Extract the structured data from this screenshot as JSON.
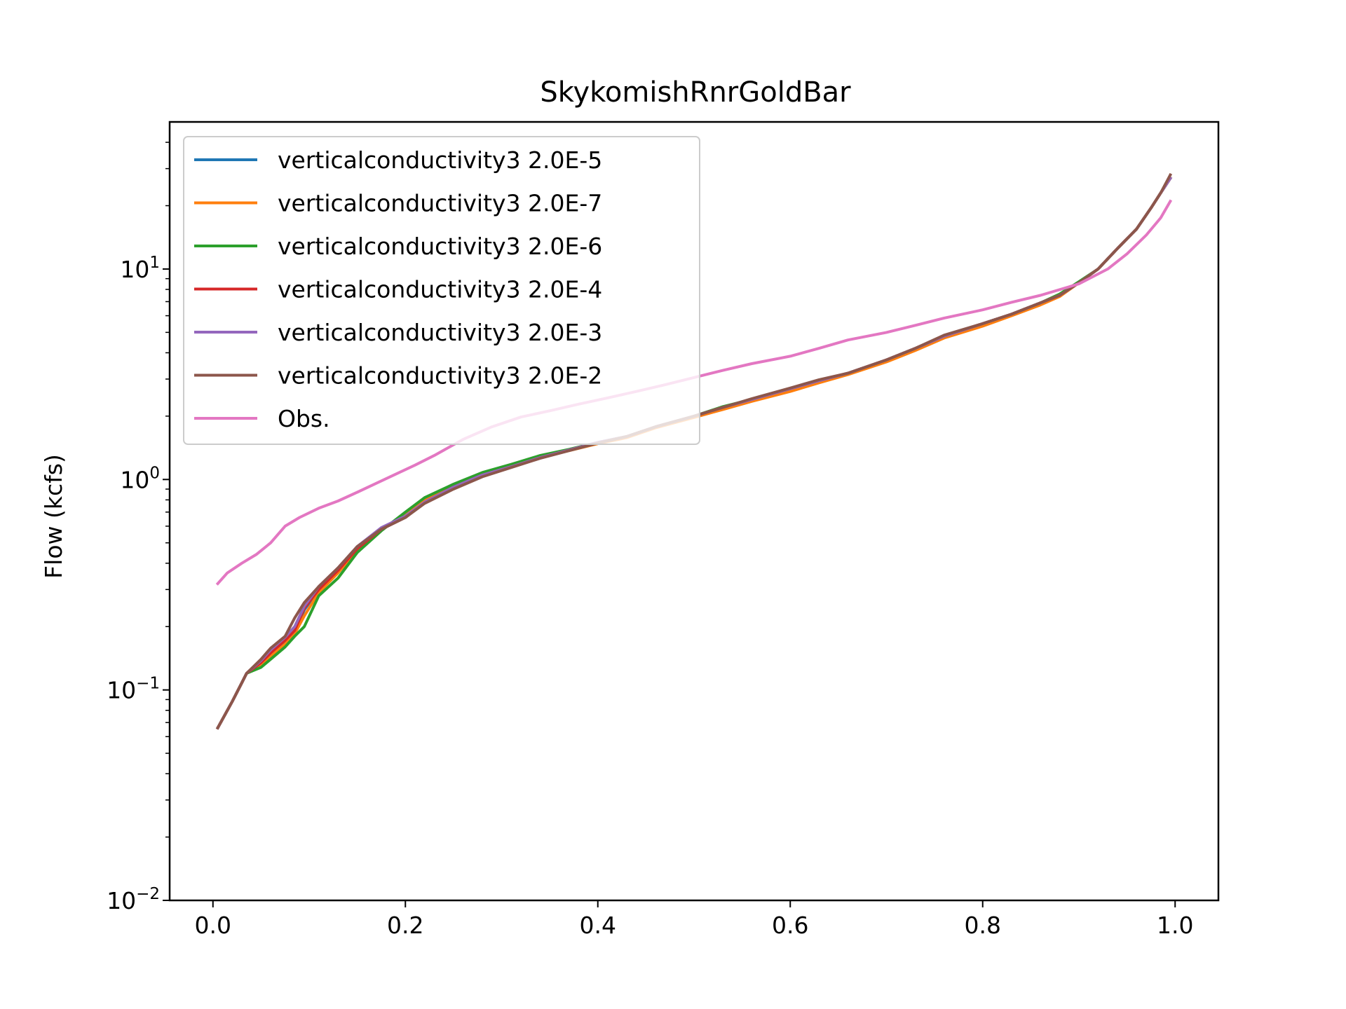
{
  "chart_data": {
    "type": "line",
    "title": "SkykomishRnrGoldBar",
    "xlabel": "",
    "ylabel": "Flow (kcfs)",
    "xlim": [
      -0.045,
      1.045
    ],
    "ylim": [
      0.01,
      50
    ],
    "yscale": "log",
    "grid": false,
    "legend_position": "upper left",
    "x_ticks": [
      {
        "value": 0.0,
        "label": "0.0"
      },
      {
        "value": 0.2,
        "label": "0.2"
      },
      {
        "value": 0.4,
        "label": "0.4"
      },
      {
        "value": 0.6,
        "label": "0.6"
      },
      {
        "value": 0.8,
        "label": "0.8"
      },
      {
        "value": 1.0,
        "label": "1.0"
      }
    ],
    "y_ticks": [
      {
        "value": 0.01,
        "base": "10",
        "exp": "−2"
      },
      {
        "value": 0.1,
        "base": "10",
        "exp": "−1"
      },
      {
        "value": 1,
        "base": "10",
        "exp": "0"
      },
      {
        "value": 10,
        "base": "10",
        "exp": "1"
      }
    ],
    "series": [
      {
        "name": "verticalconductivity3 2.0E-5",
        "color": "#1f77b4",
        "x": [
          0.005,
          0.02,
          0.03,
          0.035,
          0.05,
          0.06,
          0.075,
          0.085,
          0.095,
          0.11,
          0.13,
          0.15,
          0.175,
          0.2,
          0.22,
          0.25,
          0.28,
          0.31,
          0.34,
          0.37,
          0.4,
          0.43,
          0.46,
          0.5,
          0.53,
          0.56,
          0.6,
          0.63,
          0.66,
          0.7,
          0.73,
          0.76,
          0.8,
          0.83,
          0.86,
          0.88,
          0.9,
          0.92,
          0.94,
          0.96,
          0.975,
          0.985,
          0.995
        ],
        "y": [
          0.066,
          0.088,
          0.108,
          0.12,
          0.132,
          0.148,
          0.17,
          0.19,
          0.24,
          0.3,
          0.37,
          0.47,
          0.58,
          0.66,
          0.78,
          0.92,
          1.05,
          1.15,
          1.27,
          1.38,
          1.5,
          1.6,
          1.78,
          2.0,
          2.2,
          2.4,
          2.7,
          2.95,
          3.2,
          3.7,
          4.2,
          4.8,
          5.5,
          6.1,
          6.9,
          7.5,
          8.6,
          10.0,
          12.5,
          15.5,
          19.5,
          23.0,
          27.0
        ]
      },
      {
        "name": "verticalconductivity3 2.0E-7",
        "color": "#ff7f0e",
        "x": [
          0.005,
          0.02,
          0.03,
          0.035,
          0.05,
          0.06,
          0.075,
          0.085,
          0.095,
          0.11,
          0.13,
          0.15,
          0.175,
          0.2,
          0.22,
          0.25,
          0.28,
          0.31,
          0.34,
          0.37,
          0.4,
          0.43,
          0.46,
          0.5,
          0.53,
          0.56,
          0.6,
          0.63,
          0.66,
          0.7,
          0.73,
          0.76,
          0.8,
          0.83,
          0.86,
          0.88,
          0.9,
          0.92,
          0.94,
          0.96,
          0.975,
          0.985,
          0.995
        ],
        "y": [
          0.066,
          0.088,
          0.108,
          0.12,
          0.131,
          0.145,
          0.165,
          0.185,
          0.225,
          0.29,
          0.36,
          0.46,
          0.58,
          0.68,
          0.8,
          0.93,
          1.06,
          1.16,
          1.28,
          1.37,
          1.48,
          1.58,
          1.76,
          1.97,
          2.15,
          2.35,
          2.62,
          2.88,
          3.15,
          3.62,
          4.1,
          4.7,
          5.35,
          6.0,
          6.75,
          7.4,
          8.6,
          10.0,
          12.5,
          15.5,
          19.5,
          23.0,
          27.0
        ]
      },
      {
        "name": "verticalconductivity3 2.0E-6",
        "color": "#2ca02c",
        "x": [
          0.005,
          0.02,
          0.03,
          0.035,
          0.05,
          0.06,
          0.075,
          0.085,
          0.095,
          0.11,
          0.13,
          0.15,
          0.175,
          0.2,
          0.22,
          0.25,
          0.28,
          0.31,
          0.34,
          0.37,
          0.4,
          0.43,
          0.46,
          0.5,
          0.53,
          0.56,
          0.6,
          0.63,
          0.66,
          0.7,
          0.73,
          0.76,
          0.8,
          0.83,
          0.86,
          0.88,
          0.9,
          0.92,
          0.94,
          0.96,
          0.975,
          0.985,
          0.995
        ],
        "y": [
          0.066,
          0.088,
          0.108,
          0.12,
          0.128,
          0.14,
          0.16,
          0.18,
          0.2,
          0.28,
          0.34,
          0.45,
          0.57,
          0.7,
          0.82,
          0.95,
          1.08,
          1.18,
          1.3,
          1.39,
          1.5,
          1.6,
          1.78,
          2.0,
          2.22,
          2.4,
          2.7,
          2.95,
          3.2,
          3.7,
          4.2,
          4.8,
          5.5,
          6.1,
          6.9,
          7.6,
          8.7,
          10.0,
          12.5,
          15.5,
          19.5,
          23.0,
          27.0
        ]
      },
      {
        "name": "verticalconductivity3 2.0E-4",
        "color": "#d62728",
        "x": [
          0.005,
          0.02,
          0.03,
          0.035,
          0.05,
          0.06,
          0.075,
          0.085,
          0.095,
          0.11,
          0.13,
          0.15,
          0.175,
          0.2,
          0.22,
          0.25,
          0.28,
          0.31,
          0.34,
          0.37,
          0.4,
          0.43,
          0.46,
          0.5,
          0.53,
          0.56,
          0.6,
          0.63,
          0.66,
          0.7,
          0.73,
          0.76,
          0.8,
          0.83,
          0.86,
          0.88,
          0.9,
          0.92,
          0.94,
          0.96,
          0.975,
          0.985,
          0.995
        ],
        "y": [
          0.066,
          0.088,
          0.108,
          0.12,
          0.135,
          0.15,
          0.172,
          0.192,
          0.245,
          0.3,
          0.37,
          0.47,
          0.58,
          0.66,
          0.78,
          0.92,
          1.05,
          1.15,
          1.27,
          1.38,
          1.5,
          1.6,
          1.78,
          2.0,
          2.2,
          2.4,
          2.7,
          2.95,
          3.2,
          3.7,
          4.2,
          4.8,
          5.5,
          6.1,
          6.9,
          7.5,
          8.6,
          10.0,
          12.5,
          15.5,
          19.5,
          23.0,
          27.0
        ]
      },
      {
        "name": "verticalconductivity3 2.0E-3",
        "color": "#9467bd",
        "x": [
          0.005,
          0.02,
          0.03,
          0.035,
          0.05,
          0.06,
          0.075,
          0.085,
          0.095,
          0.11,
          0.13,
          0.15,
          0.175,
          0.2,
          0.22,
          0.25,
          0.28,
          0.31,
          0.34,
          0.37,
          0.4,
          0.43,
          0.46,
          0.5,
          0.53,
          0.56,
          0.6,
          0.63,
          0.66,
          0.7,
          0.73,
          0.76,
          0.8,
          0.83,
          0.86,
          0.88,
          0.9,
          0.92,
          0.94,
          0.96,
          0.975,
          0.985,
          0.995
        ],
        "y": [
          0.066,
          0.088,
          0.108,
          0.12,
          0.138,
          0.155,
          0.178,
          0.2,
          0.25,
          0.31,
          0.38,
          0.48,
          0.59,
          0.67,
          0.78,
          0.92,
          1.05,
          1.15,
          1.27,
          1.38,
          1.5,
          1.6,
          1.78,
          2.0,
          2.2,
          2.4,
          2.7,
          2.95,
          3.2,
          3.7,
          4.2,
          4.8,
          5.5,
          6.1,
          6.9,
          7.5,
          8.6,
          10.0,
          12.5,
          15.5,
          19.5,
          23.0,
          27.0
        ]
      },
      {
        "name": "verticalconductivity3 2.0E-2",
        "color": "#8c564b",
        "x": [
          0.005,
          0.02,
          0.03,
          0.035,
          0.05,
          0.06,
          0.075,
          0.085,
          0.095,
          0.11,
          0.13,
          0.15,
          0.175,
          0.2,
          0.22,
          0.25,
          0.28,
          0.31,
          0.34,
          0.37,
          0.4,
          0.43,
          0.46,
          0.5,
          0.53,
          0.56,
          0.6,
          0.63,
          0.66,
          0.7,
          0.73,
          0.76,
          0.8,
          0.83,
          0.86,
          0.88,
          0.9,
          0.92,
          0.94,
          0.96,
          0.975,
          0.985,
          0.995
        ],
        "y": [
          0.066,
          0.088,
          0.108,
          0.12,
          0.14,
          0.158,
          0.18,
          0.22,
          0.26,
          0.31,
          0.38,
          0.48,
          0.58,
          0.66,
          0.77,
          0.9,
          1.03,
          1.14,
          1.26,
          1.37,
          1.49,
          1.6,
          1.78,
          2.0,
          2.2,
          2.42,
          2.72,
          2.98,
          3.2,
          3.7,
          4.2,
          4.85,
          5.5,
          6.1,
          6.9,
          7.5,
          8.6,
          10.0,
          12.5,
          15.5,
          19.5,
          23.0,
          28.0
        ]
      },
      {
        "name": "Obs.",
        "color": "#e377c2",
        "x": [
          0.005,
          0.015,
          0.03,
          0.045,
          0.06,
          0.075,
          0.09,
          0.11,
          0.13,
          0.15,
          0.17,
          0.19,
          0.21,
          0.23,
          0.26,
          0.29,
          0.32,
          0.35,
          0.38,
          0.41,
          0.44,
          0.47,
          0.5,
          0.53,
          0.56,
          0.6,
          0.63,
          0.66,
          0.7,
          0.73,
          0.76,
          0.8,
          0.83,
          0.86,
          0.9,
          0.93,
          0.95,
          0.97,
          0.985,
          0.995
        ],
        "y": [
          0.32,
          0.36,
          0.4,
          0.44,
          0.5,
          0.6,
          0.66,
          0.73,
          0.79,
          0.87,
          0.96,
          1.06,
          1.17,
          1.3,
          1.55,
          1.78,
          1.98,
          2.12,
          2.28,
          2.44,
          2.62,
          2.82,
          3.05,
          3.3,
          3.55,
          3.85,
          4.2,
          4.6,
          5.0,
          5.4,
          5.85,
          6.4,
          6.95,
          7.5,
          8.5,
          10.0,
          11.8,
          14.5,
          17.5,
          21.0
        ]
      }
    ]
  }
}
